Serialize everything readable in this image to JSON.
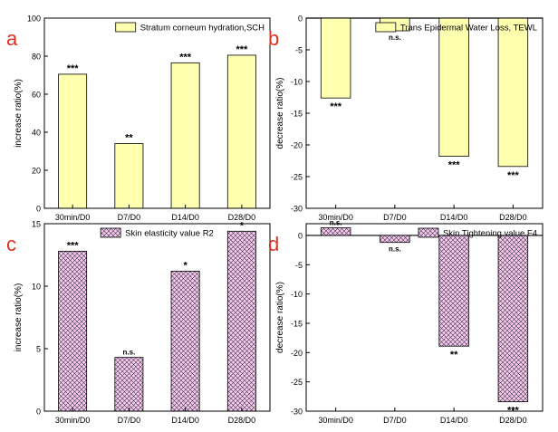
{
  "chart_data": [
    {
      "id": "a",
      "type": "bar",
      "panel_letter": "a",
      "legend": "Stratum corneum hydration,SCH",
      "legend_position": "top-right",
      "ylabel": "increase ratio(%)",
      "xlabel": "",
      "categories": [
        "30min/D0",
        "D7/D0",
        "D14/D0",
        "D28/D0"
      ],
      "values": [
        70.5,
        34,
        76.5,
        80.5
      ],
      "significance": [
        "***",
        "**",
        "***",
        "***"
      ],
      "ylim": [
        0,
        100
      ],
      "yticks": [
        0,
        20,
        40,
        60,
        80,
        100
      ],
      "fill": "yellow"
    },
    {
      "id": "b",
      "type": "bar",
      "panel_letter": "b",
      "legend": "Trans Epidermal Water Loss, TEWL",
      "legend_position": "top-right",
      "ylabel": "decrease ratio(%)",
      "xlabel": "",
      "categories": [
        "30min/D0",
        "D7/D0",
        "D14/D0",
        "D28/D0"
      ],
      "values": [
        -12.6,
        -2.0,
        -21.8,
        -23.4
      ],
      "significance": [
        "***",
        "n.s.",
        "***",
        "***"
      ],
      "ylim": [
        -30,
        0
      ],
      "yticks": [
        -30,
        -25,
        -20,
        -15,
        -10,
        -5,
        0
      ],
      "fill": "yellow"
    },
    {
      "id": "c",
      "type": "bar",
      "panel_letter": "c",
      "legend": "Skin elasticity value R2",
      "legend_position": "top-center",
      "ylabel": "increase ratio(%)",
      "xlabel": "",
      "categories": [
        "30min/D0",
        "D7/D0",
        "D14/D0",
        "D28/D0"
      ],
      "values": [
        12.8,
        4.3,
        11.2,
        14.4
      ],
      "significance": [
        "***",
        "n.s.",
        "*",
        "*"
      ],
      "ylim": [
        0,
        15
      ],
      "yticks": [
        0,
        5,
        10,
        15
      ],
      "fill": "hatch"
    },
    {
      "id": "d",
      "type": "bar",
      "panel_letter": "d",
      "legend": "Skin Tightening value F4",
      "legend_position": "top-right",
      "ylabel": "decrease ratio(%)",
      "xlabel": "",
      "categories": [
        "30min/D0",
        "D7/D0",
        "D14/D0",
        "D28/D0"
      ],
      "values": [
        1.3,
        -1.2,
        -18.9,
        -28.4
      ],
      "significance": [
        "n.s.",
        "n.s.",
        "**",
        "***"
      ],
      "ylim": [
        -30,
        2
      ],
      "yticks": [
        -30,
        -25,
        -20,
        -15,
        -10,
        -5,
        0
      ],
      "fill": "hatch"
    }
  ],
  "colors": {
    "yellow_fill": "#ffffb0",
    "hatch_fill": "#f7c7f2",
    "hatch_line": "#3a3a3a",
    "bar_stroke": "#000000",
    "panel_letter": "#e03020",
    "axis": "#000000"
  }
}
